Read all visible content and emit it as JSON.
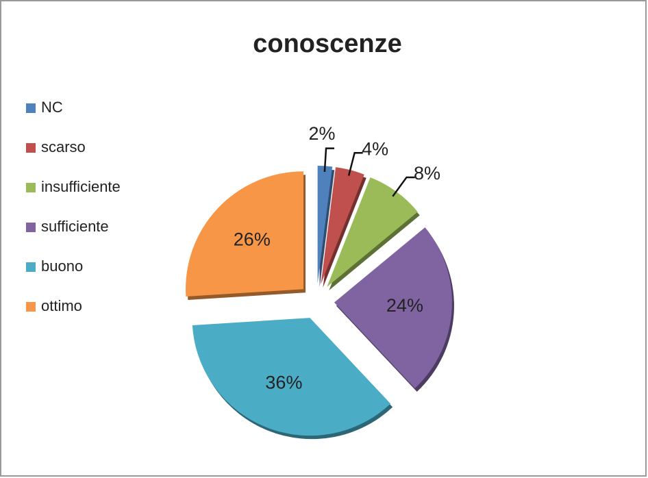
{
  "chart_data": {
    "type": "pie",
    "title": "conoscenze",
    "categories": [
      "NC",
      "scarso",
      "insufficiente",
      "sufficiente",
      "buono",
      "ottimo"
    ],
    "values": [
      2,
      4,
      8,
      24,
      36,
      26
    ],
    "value_labels": [
      "2%",
      "4%",
      "8%",
      "24%",
      "36%",
      "26%"
    ],
    "colors": [
      "#4f81bd",
      "#c0504d",
      "#9bbb59",
      "#8064a2",
      "#4bacc6",
      "#f79646"
    ],
    "legend": "left"
  }
}
